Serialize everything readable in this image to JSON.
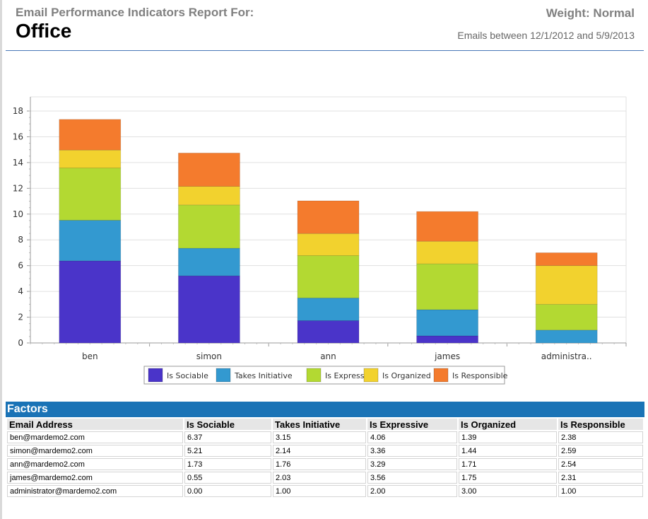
{
  "header": {
    "report_for": "Email Performance Indicators Report For:",
    "office": "Office",
    "weight": "Weight: Normal",
    "dates": "Emails between 12/1/2012 and 5/9/2013"
  },
  "chart_data": {
    "type": "bar",
    "stacked": true,
    "categories": [
      "ben",
      "simon",
      "ann",
      "james",
      "administra.."
    ],
    "series": [
      {
        "name": "Is Sociable",
        "color": "#4a34c9",
        "values": [
          6.37,
          5.21,
          1.73,
          0.55,
          0.0
        ]
      },
      {
        "name": "Takes Initiative",
        "color": "#3399d0",
        "values": [
          3.15,
          2.14,
          1.76,
          2.03,
          1.0
        ]
      },
      {
        "name": "Is Expressive",
        "color": "#b3d932",
        "values": [
          4.06,
          3.36,
          3.29,
          3.56,
          2.0
        ]
      },
      {
        "name": "Is Organized",
        "color": "#f2d22e",
        "values": [
          1.39,
          1.44,
          1.71,
          1.75,
          3.0
        ]
      },
      {
        "name": "Is Responsible",
        "color": "#f47b2d",
        "values": [
          2.38,
          2.59,
          2.54,
          2.31,
          1.0
        ]
      }
    ],
    "ylim": [
      0,
      18
    ],
    "yticks": [
      "0",
      "2",
      "4",
      "6",
      "8",
      "10",
      "12",
      "14",
      "16",
      "18"
    ],
    "grid": true,
    "legend": "bottom"
  },
  "factors": {
    "title": "Factors",
    "columns": [
      "Email Address",
      "Is Sociable",
      "Takes Initiative",
      "Is Expressive",
      "Is Organized",
      "Is Responsible"
    ],
    "rows": [
      [
        "ben@mardemo2.com",
        "6.37",
        "3.15",
        "4.06",
        "1.39",
        "2.38"
      ],
      [
        "simon@mardemo2.com",
        "5.21",
        "2.14",
        "3.36",
        "1.44",
        "2.59"
      ],
      [
        "ann@mardemo2.com",
        "1.73",
        "1.76",
        "3.29",
        "1.71",
        "2.54"
      ],
      [
        "james@mardemo2.com",
        "0.55",
        "2.03",
        "3.56",
        "1.75",
        "2.31"
      ],
      [
        "administrator@mardemo2.com",
        "0.00",
        "1.00",
        "2.00",
        "3.00",
        "1.00"
      ]
    ]
  }
}
